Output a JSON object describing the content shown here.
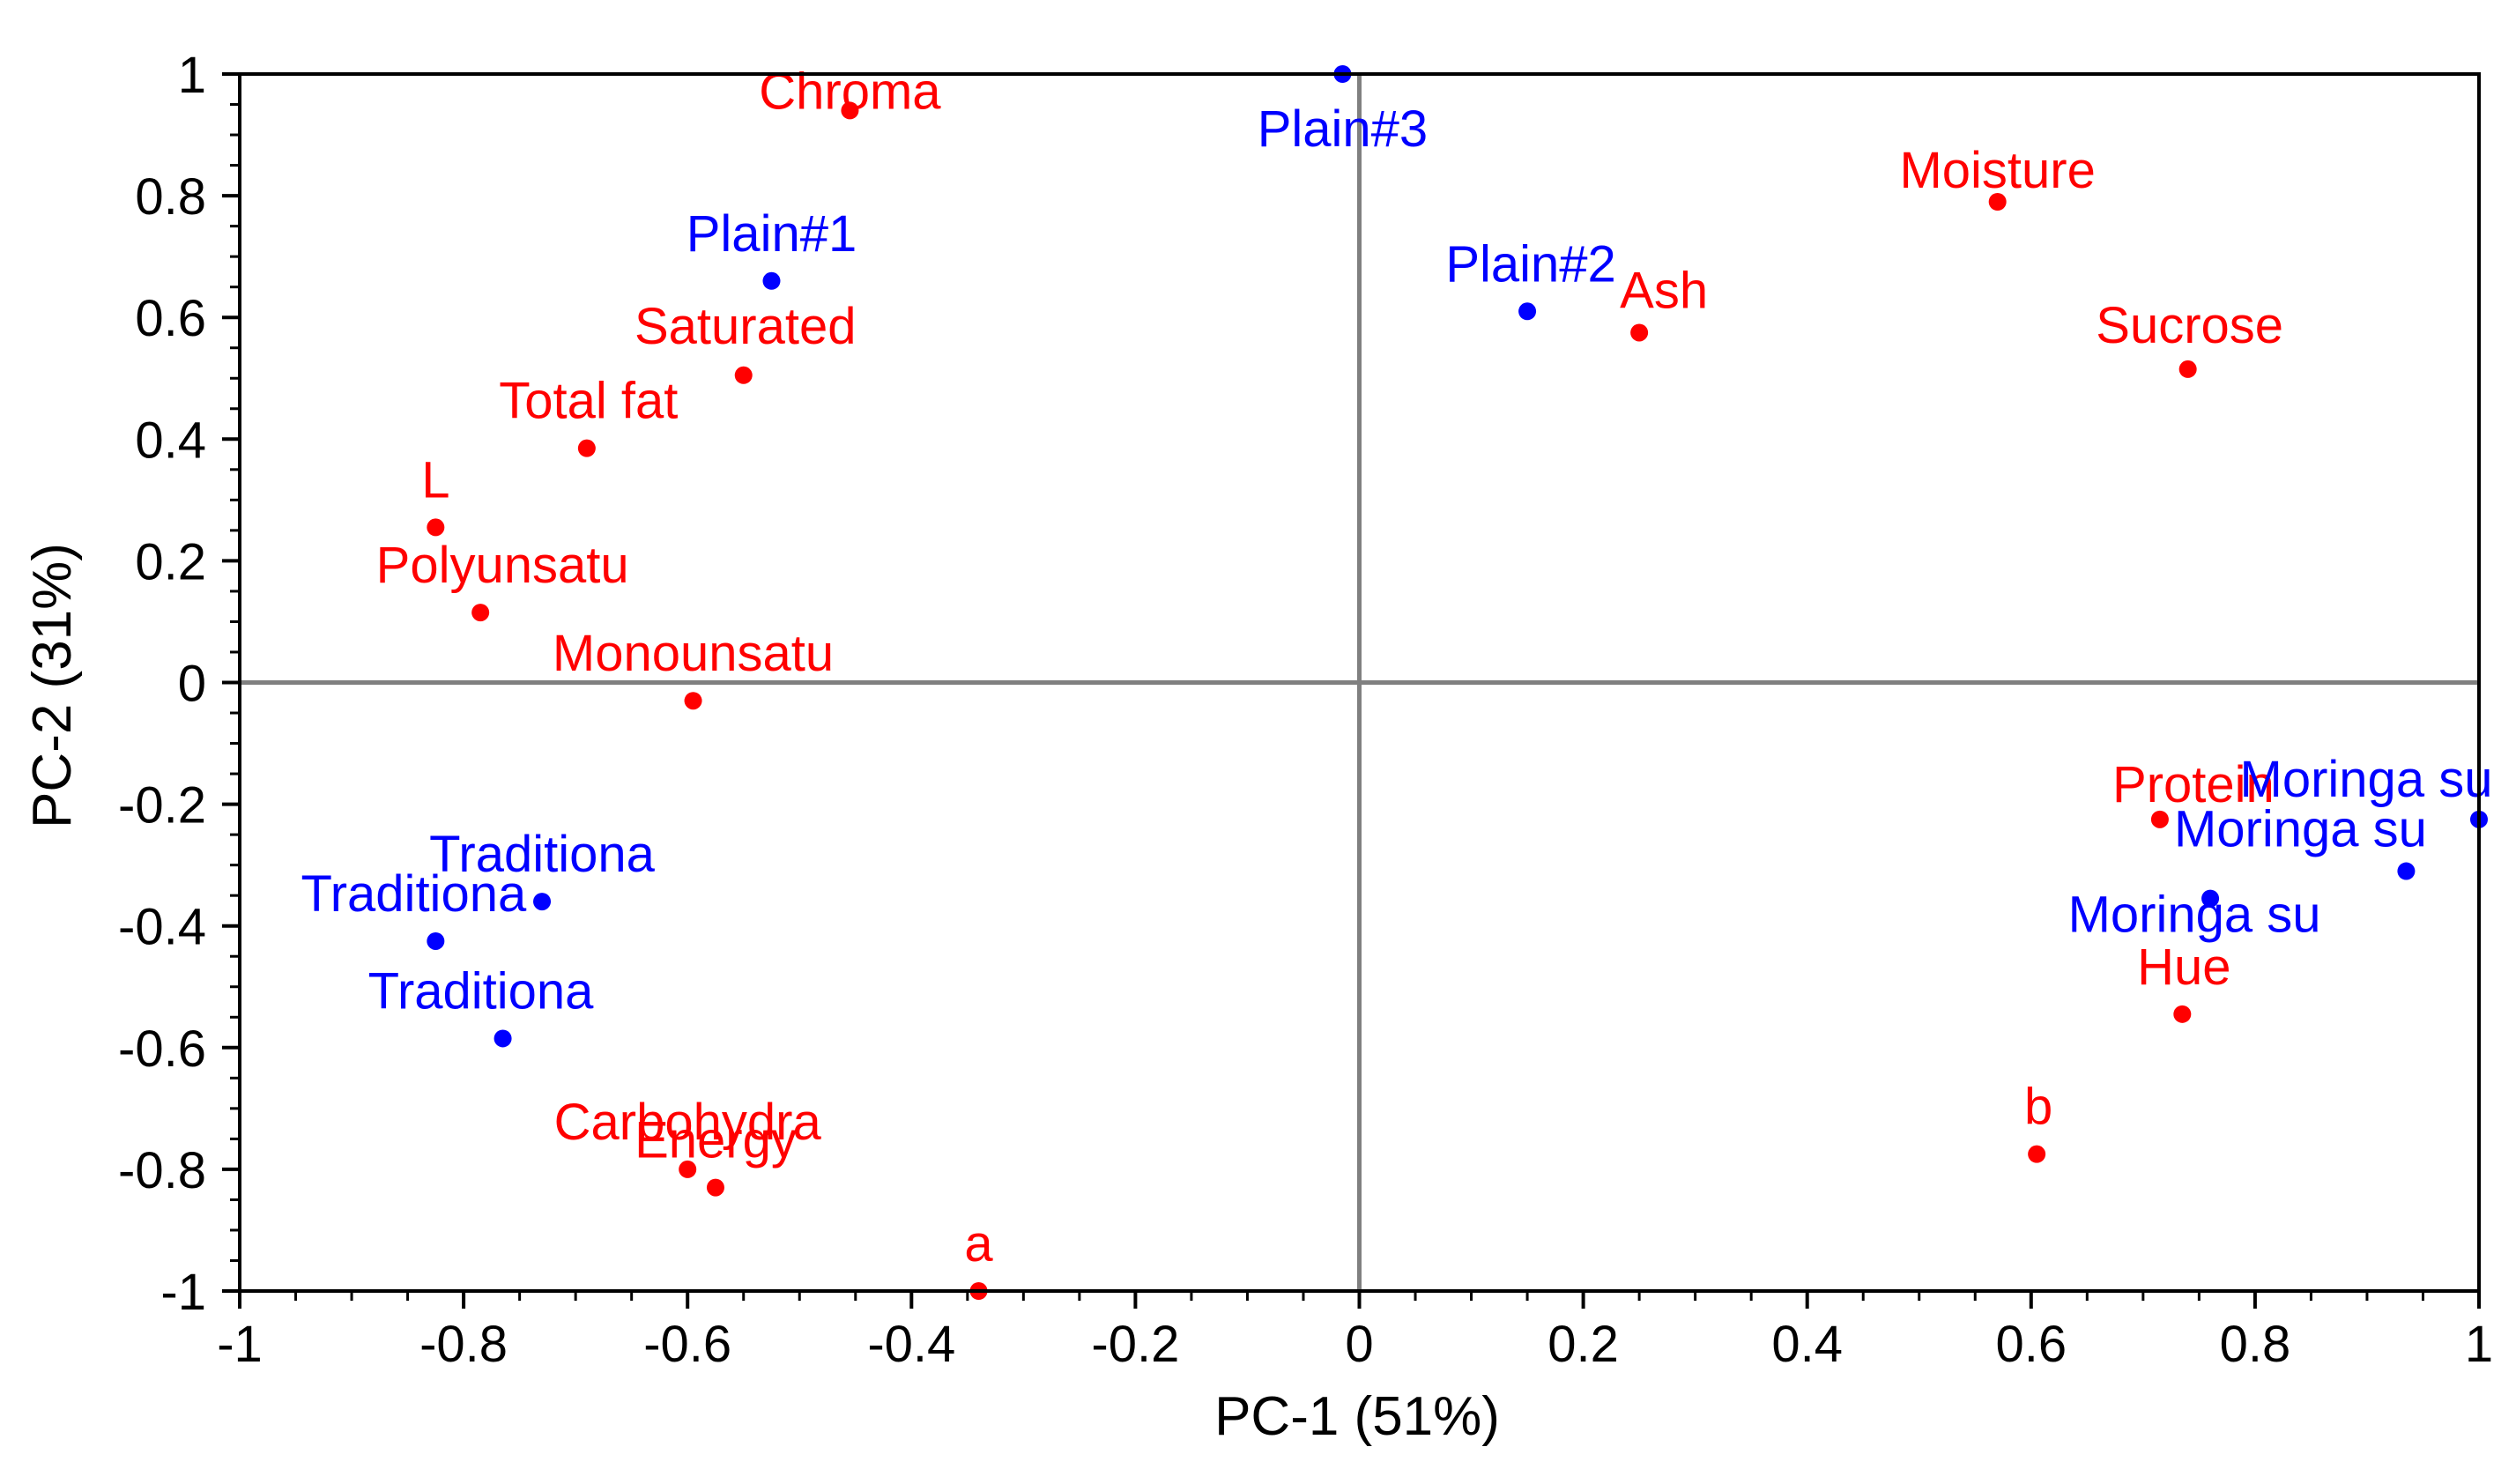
{
  "chart_data": {
    "type": "scatter",
    "title": "",
    "xlabel": "PC-1 (51%)",
    "ylabel": "PC-2 (31%)",
    "xlim": [
      -1,
      1
    ],
    "ylim": [
      -1,
      1
    ],
    "x_ticks": [
      -1,
      -0.8,
      -0.6,
      -0.4,
      -0.2,
      0,
      0.2,
      0.4,
      0.6,
      0.8,
      1
    ],
    "x_tick_labels": [
      "-1",
      "-0.8",
      "-0.6",
      "-0.4",
      "-0.2",
      "0",
      "0.2",
      "0.4",
      "0.6",
      "0.8",
      "1"
    ],
    "y_ticks": [
      -1,
      -0.8,
      -0.6,
      -0.4,
      -0.2,
      0,
      0.2,
      0.4,
      0.6,
      0.8,
      1
    ],
    "y_tick_labels": [
      "-1",
      "-0.8",
      "-0.6",
      "-0.4",
      "-0.2",
      "0",
      "0.2",
      "0.4",
      "0.6",
      "0.8",
      "1"
    ],
    "zero_lines": true,
    "grid": false,
    "series": [
      {
        "name": "variables",
        "color": "#ff0000",
        "points": [
          {
            "label": "Chroma",
            "x": -0.455,
            "y": 0.94
          },
          {
            "label": "Moisture",
            "x": 0.57,
            "y": 0.79
          },
          {
            "label": "Ash",
            "x": 0.25,
            "y": 0.575
          },
          {
            "label": "Sucrose",
            "x": 0.74,
            "y": 0.515
          },
          {
            "label": "Saturated",
            "x": -0.55,
            "y": 0.505
          },
          {
            "label": "Total fat",
            "x": -0.69,
            "y": 0.385
          },
          {
            "label": "L",
            "x": -0.825,
            "y": 0.255
          },
          {
            "label": "Polyunsatu",
            "x": -0.785,
            "y": 0.115
          },
          {
            "label": "Monounsatu",
            "x": -0.595,
            "y": -0.03
          },
          {
            "label": "Protein",
            "x": 0.715,
            "y": -0.225
          },
          {
            "label": "Hue",
            "x": 0.735,
            "y": -0.545
          },
          {
            "label": "b",
            "x": 0.605,
            "y": -0.775
          },
          {
            "label": "Carbohydra",
            "x": -0.6,
            "y": -0.8
          },
          {
            "label": "Energy",
            "x": -0.575,
            "y": -0.83
          },
          {
            "label": "a",
            "x": -0.34,
            "y": -1.0
          }
        ]
      },
      {
        "name": "samples",
        "color": "#0000ff",
        "points": [
          {
            "label": "Plain#3",
            "x": -0.015,
            "y": 1.0
          },
          {
            "label": "Plain#1",
            "x": -0.525,
            "y": 0.66
          },
          {
            "label": "Plain#2",
            "x": 0.15,
            "y": 0.61
          },
          {
            "label": "Moringa su",
            "x": 1.0,
            "y": -0.225
          },
          {
            "label": "Moringa su",
            "x": 0.935,
            "y": -0.31
          },
          {
            "label": "Moringa su",
            "x": 0.76,
            "y": -0.355
          },
          {
            "label": "Traditiona",
            "x": -0.73,
            "y": -0.36
          },
          {
            "label": "Traditiona",
            "x": -0.825,
            "y": -0.425
          },
          {
            "label": "Traditiona",
            "x": -0.765,
            "y": -0.585
          }
        ]
      }
    ]
  }
}
